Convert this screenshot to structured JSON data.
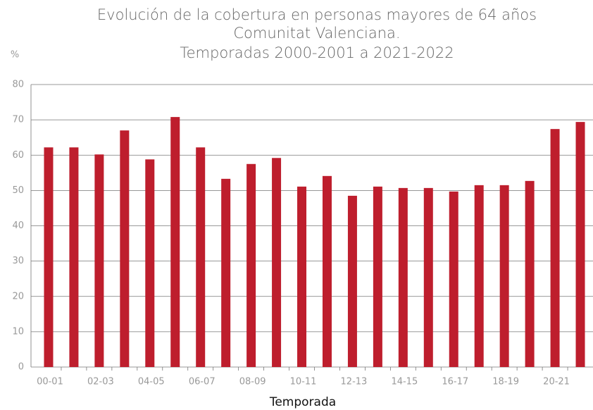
{
  "chart_data": {
    "type": "bar",
    "title": [
      "Evolución de la cobertura en personas mayores de 64 años",
      "Comunitat Valenciana.",
      "Temporadas 2000-2001 a 2021-2022"
    ],
    "y_label": "%",
    "x_label": "Temporada",
    "categories": [
      "00-01",
      null,
      "02-03",
      null,
      "04-05",
      null,
      "06-07",
      null,
      "08-09",
      null,
      "10-11",
      null,
      "12-13",
      null,
      "14-15",
      null,
      "16-17",
      null,
      "18-19",
      null,
      "20-21",
      null
    ],
    "values": [
      62.2,
      62.2,
      60.2,
      67.0,
      58.8,
      70.8,
      62.2,
      53.3,
      57.5,
      59.2,
      51.1,
      54.1,
      48.5,
      51.1,
      50.7,
      50.7,
      49.7,
      51.5,
      51.5,
      52.7,
      67.4,
      69.4
    ],
    "color": "#be1e2d",
    "ylim": [
      0,
      80
    ],
    "yticks": [
      0,
      10,
      20,
      30,
      40,
      50,
      60,
      70,
      80
    ],
    "grid": true
  }
}
